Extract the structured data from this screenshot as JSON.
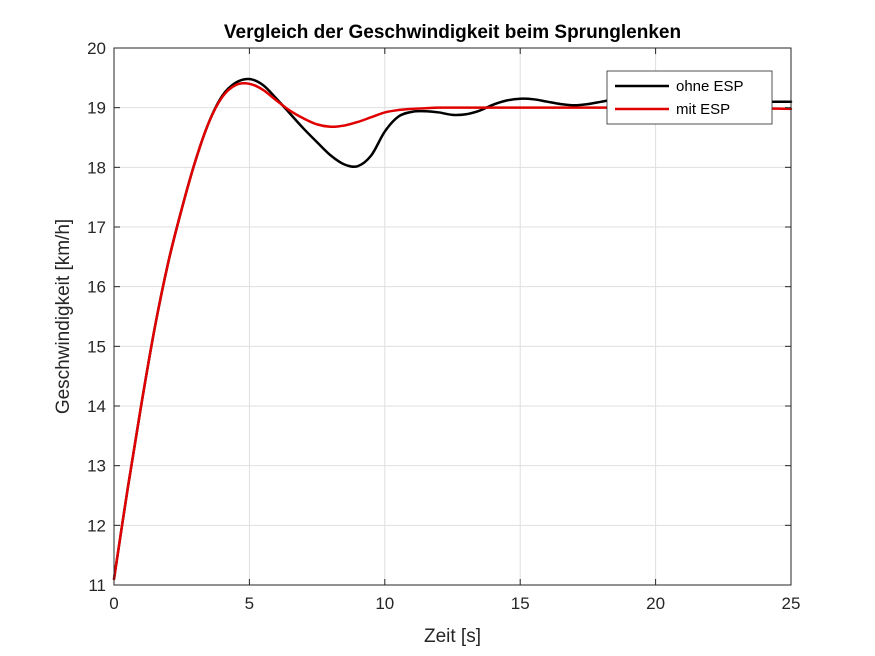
{
  "chart_data": {
    "type": "line",
    "title": "Vergleich der Geschwindigkeit beim Sprunglenken",
    "xlabel": "Zeit [s]",
    "ylabel": "Geschwindigkeit [km/h]",
    "xlim": [
      0,
      25
    ],
    "ylim": [
      11,
      20
    ],
    "xticks": [
      "0",
      "5",
      "10",
      "15",
      "20",
      "25"
    ],
    "yticks": [
      "11",
      "12",
      "13",
      "14",
      "15",
      "16",
      "17",
      "18",
      "19",
      "20"
    ],
    "grid": true,
    "legend_position": "top-right",
    "series": [
      {
        "name": "ohne ESP",
        "color": "#000000",
        "x": [
          0,
          0.5,
          1,
          1.5,
          2,
          2.5,
          3,
          3.5,
          4,
          4.5,
          5,
          5.5,
          6,
          6.5,
          7,
          7.5,
          8,
          8.5,
          9,
          9.5,
          10,
          10.5,
          11,
          11.5,
          12,
          12.5,
          13,
          13.5,
          14,
          14.5,
          15,
          15.5,
          16,
          16.5,
          17,
          17.5,
          18,
          18.5,
          19,
          19.5,
          20,
          21,
          22,
          23,
          24,
          25
        ],
        "y": [
          11.1,
          12.6,
          14.0,
          15.3,
          16.4,
          17.3,
          18.1,
          18.75,
          19.2,
          19.42,
          19.48,
          19.38,
          19.15,
          18.9,
          18.65,
          18.42,
          18.2,
          18.05,
          18.02,
          18.2,
          18.6,
          18.85,
          18.93,
          18.94,
          18.92,
          18.88,
          18.89,
          18.95,
          19.05,
          19.12,
          19.15,
          19.14,
          19.1,
          19.06,
          19.04,
          19.06,
          19.1,
          19.14,
          19.16,
          19.14,
          19.1,
          19.1,
          19.1,
          19.1,
          19.1,
          19.1
        ]
      },
      {
        "name": "mit ESP",
        "color": "#e00000",
        "x": [
          0,
          0.5,
          1,
          1.5,
          2,
          2.5,
          3,
          3.5,
          4,
          4.5,
          5,
          5.5,
          6,
          6.5,
          7,
          7.5,
          8,
          8.5,
          9,
          9.5,
          10,
          10.5,
          11,
          11.5,
          12,
          13,
          14,
          15,
          16,
          18,
          20,
          22,
          25
        ],
        "y": [
          11.1,
          12.6,
          14.0,
          15.3,
          16.4,
          17.3,
          18.1,
          18.75,
          19.18,
          19.38,
          19.4,
          19.3,
          19.12,
          18.95,
          18.82,
          18.72,
          18.68,
          18.7,
          18.76,
          18.84,
          18.92,
          18.96,
          18.98,
          18.99,
          19.0,
          19.0,
          19.0,
          19.0,
          19.0,
          19.0,
          19.0,
          19.0,
          18.98
        ]
      }
    ]
  }
}
